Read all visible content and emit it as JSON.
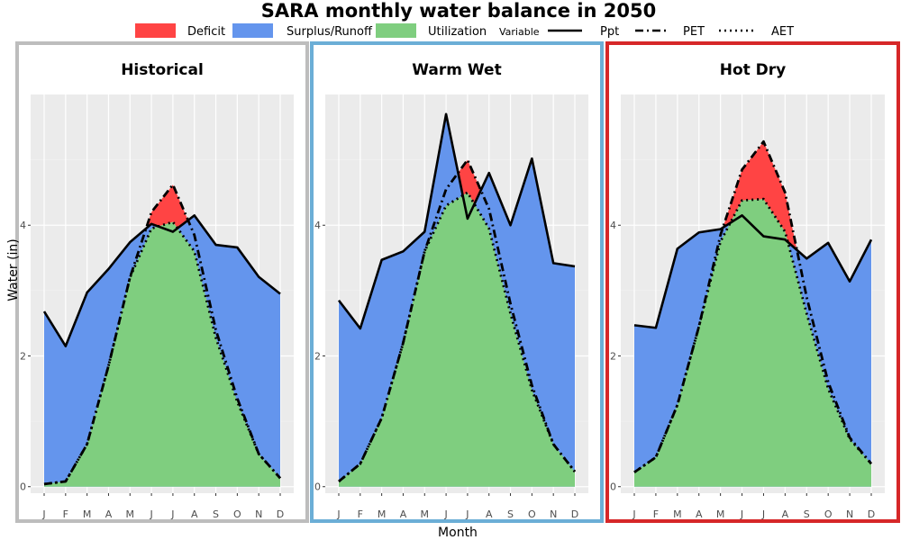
{
  "title": "SARA monthly water balance in 2050",
  "legend": {
    "fill_items": [
      {
        "label": "Deficit",
        "color": "#ff4444"
      },
      {
        "label": "Surplus/Runoff",
        "color": "#6495ed"
      },
      {
        "label": "Utilization",
        "color": "#7fce7f"
      }
    ],
    "line_title": "Variable",
    "line_items": [
      {
        "label": "Ppt",
        "style": "solid"
      },
      {
        "label": "PET",
        "style": "dashdot"
      },
      {
        "label": "AET",
        "style": "dotted"
      }
    ]
  },
  "chart_data": {
    "type": "area",
    "xlabel": "Month",
    "ylabel": "Water (in)",
    "months": [
      "J",
      "F",
      "M",
      "A",
      "M",
      "J",
      "J",
      "A",
      "S",
      "O",
      "N",
      "D"
    ],
    "yticks": [
      0,
      2,
      4
    ],
    "ylim": [
      -0.1,
      6.0
    ],
    "grid": true,
    "legend_position": "top",
    "panels": [
      {
        "name": "Historical",
        "border_color": "#bdbdbd",
        "series": [
          {
            "name": "Ppt",
            "values": [
              2.68,
              2.15,
              2.97,
              3.33,
              3.74,
              4.02,
              3.9,
              4.15,
              3.7,
              3.66,
              3.21,
              2.95
            ]
          },
          {
            "name": "PET",
            "values": [
              0.04,
              0.08,
              0.65,
              1.85,
              3.2,
              4.2,
              4.62,
              3.85,
              2.4,
              1.35,
              0.5,
              0.13
            ]
          },
          {
            "name": "AET",
            "values": [
              0.04,
              0.08,
              0.65,
              1.85,
              3.2,
              3.95,
              4.05,
              3.6,
              2.28,
              1.3,
              0.5,
              0.13
            ]
          }
        ]
      },
      {
        "name": "Warm Wet",
        "border_color": "#6baed6",
        "series": [
          {
            "name": "Ppt",
            "values": [
              2.85,
              2.42,
              3.47,
              3.6,
              3.9,
              5.7,
              4.1,
              4.8,
              4.0,
              5.02,
              3.42,
              3.37
            ]
          },
          {
            "name": "PET",
            "values": [
              0.08,
              0.35,
              1.05,
              2.2,
              3.6,
              4.55,
              5.0,
              4.25,
              2.8,
              1.55,
              0.65,
              0.23
            ]
          },
          {
            "name": "AET",
            "values": [
              0.08,
              0.35,
              1.05,
              2.2,
              3.6,
              4.3,
              4.5,
              3.95,
              2.65,
              1.48,
              0.65,
              0.23
            ]
          }
        ]
      },
      {
        "name": "Hot Dry",
        "border_color": "#d62728",
        "series": [
          {
            "name": "Ppt",
            "values": [
              2.47,
              2.43,
              3.64,
              3.89,
              3.94,
              4.15,
              3.83,
              3.78,
              3.49,
              3.73,
              3.14,
              3.78
            ]
          },
          {
            "name": "PET",
            "values": [
              0.22,
              0.45,
              1.25,
              2.45,
              3.85,
              4.85,
              5.28,
              4.5,
              2.9,
              1.6,
              0.75,
              0.35
            ]
          },
          {
            "name": "AET",
            "values": [
              0.22,
              0.45,
              1.25,
              2.45,
              3.75,
              4.38,
              4.4,
              3.9,
              2.65,
              1.5,
              0.73,
              0.35
            ]
          }
        ]
      }
    ]
  }
}
